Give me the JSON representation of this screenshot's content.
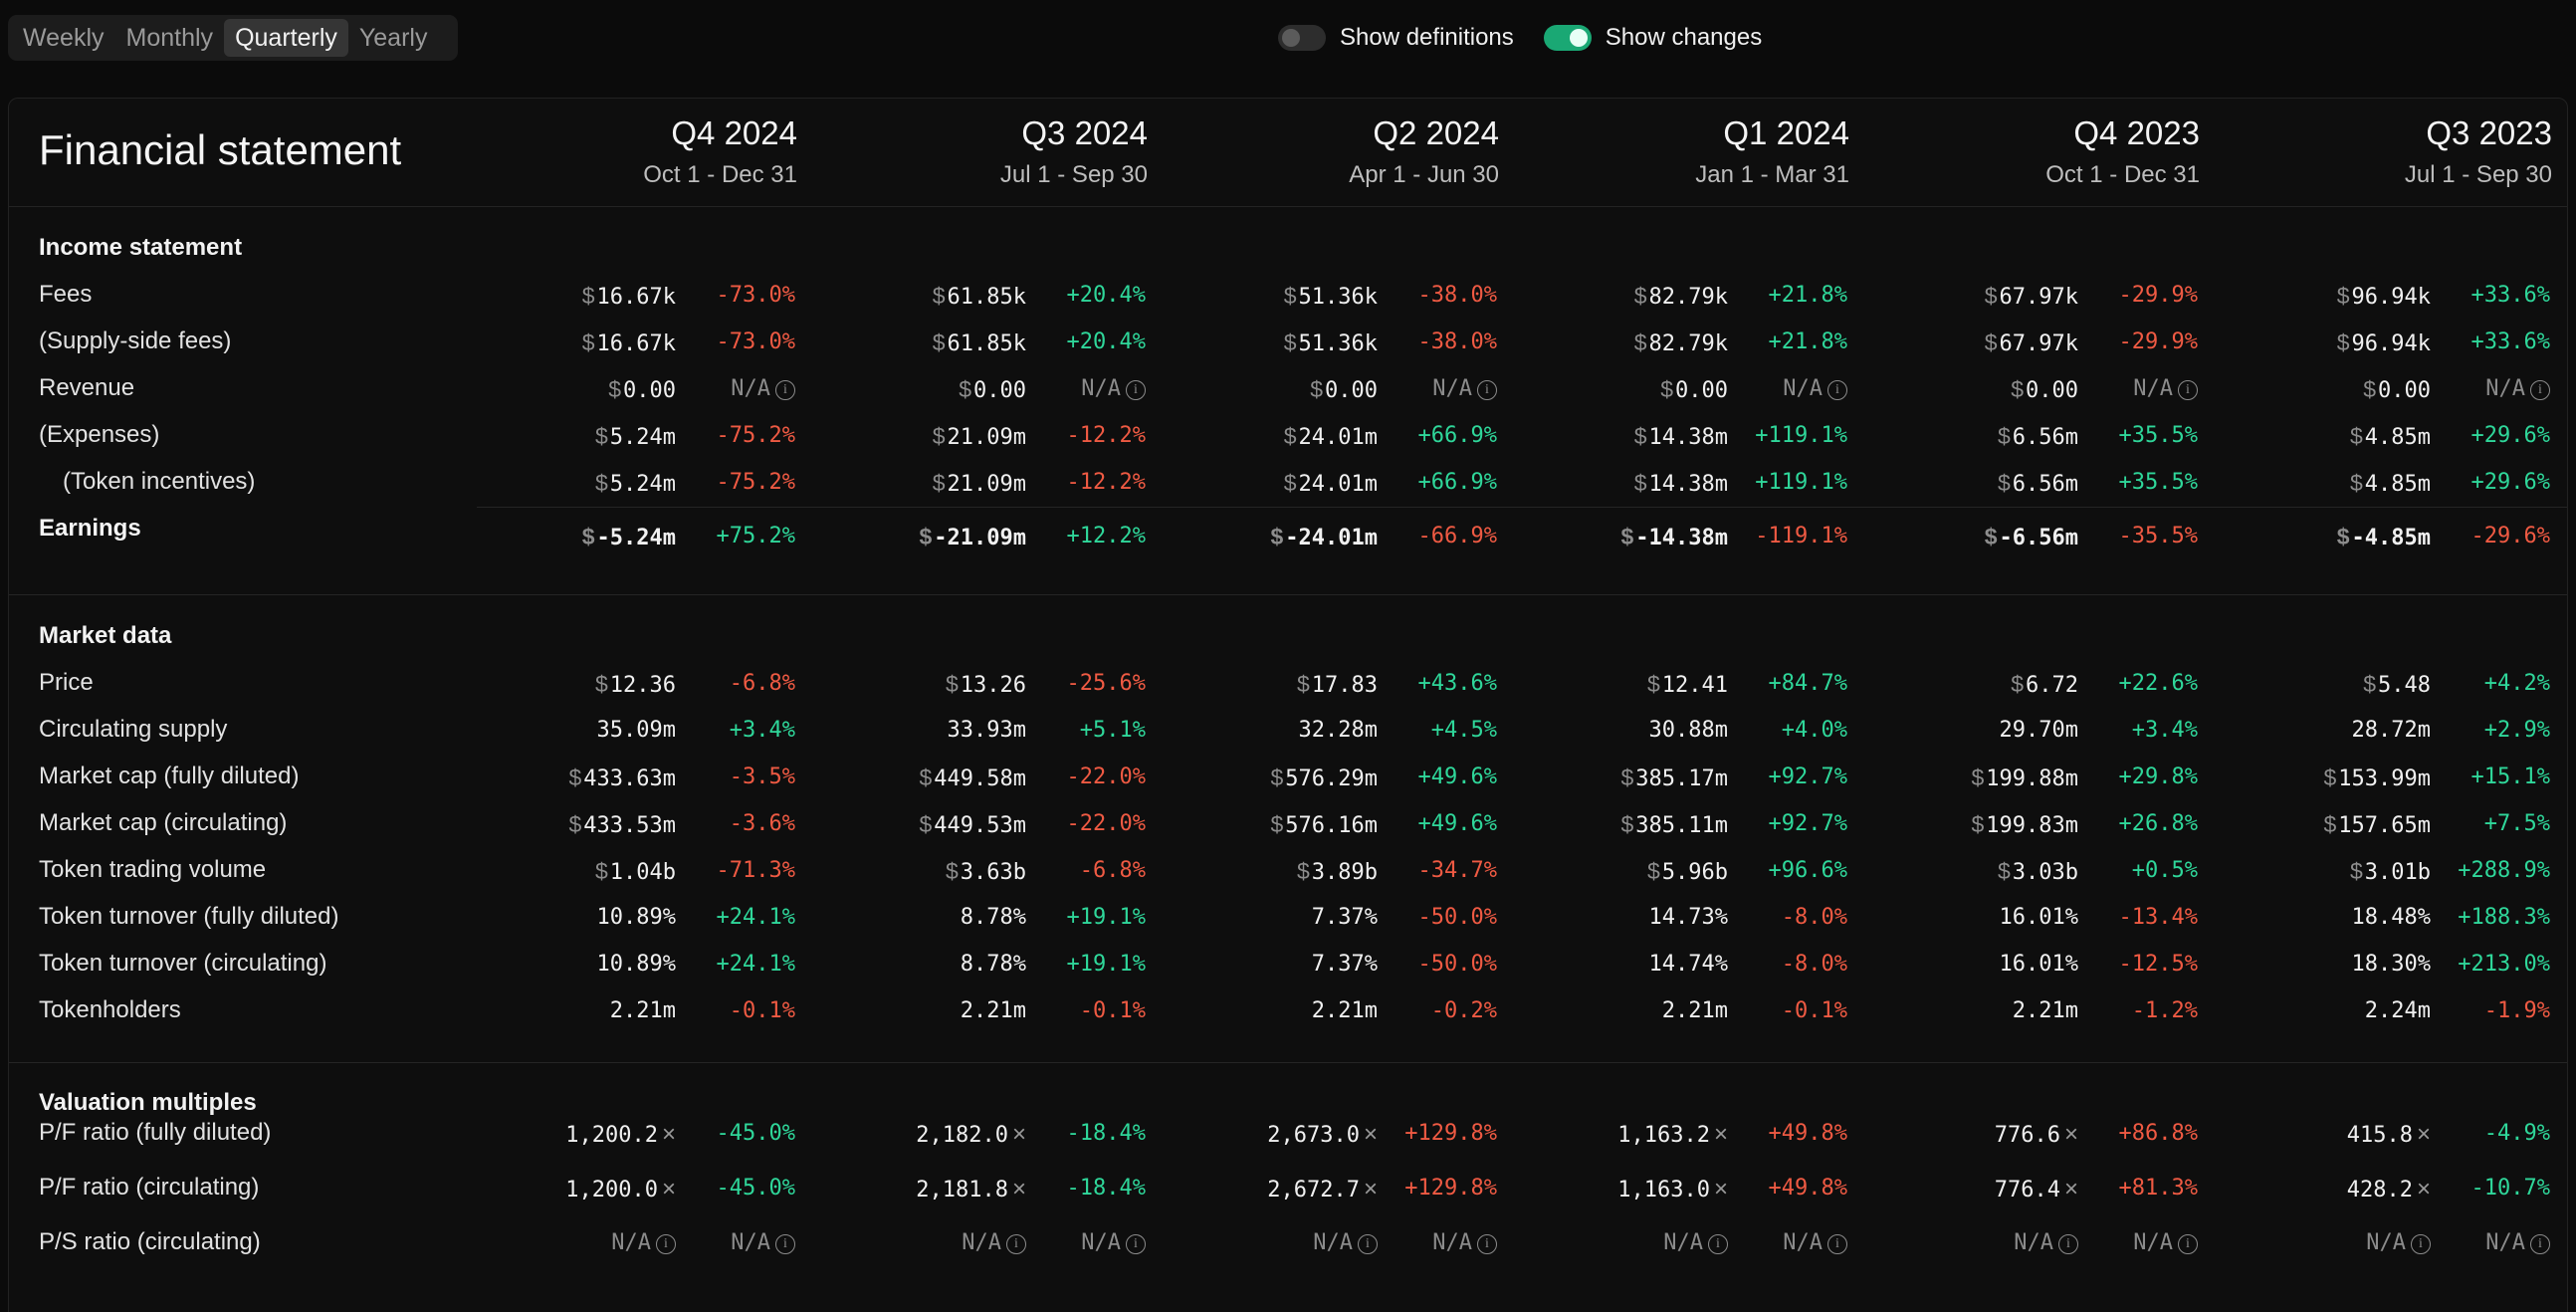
{
  "period_tabs": [
    "Weekly",
    "Monthly",
    "Quarterly",
    "Yearly"
  ],
  "active_tab": "Quarterly",
  "toggles": {
    "definitions": {
      "label": "Show definitions",
      "on": false
    },
    "changes": {
      "label": "Show changes",
      "on": true
    }
  },
  "title": "Financial statement",
  "columns": [
    {
      "period": "Q4 2024",
      "range": "Oct 1 - Dec 31"
    },
    {
      "period": "Q3 2024",
      "range": "Jul 1 - Sep 30"
    },
    {
      "period": "Q2 2024",
      "range": "Apr 1 - Jun 30"
    },
    {
      "period": "Q1 2024",
      "range": "Jan 1 - Mar 31"
    },
    {
      "period": "Q4 2023",
      "range": "Oct 1 - Dec 31"
    },
    {
      "period": "Q3 2023",
      "range": "Jul 1 - Sep 30"
    }
  ],
  "currency_symbol": "$",
  "na_text": "N/A",
  "info_glyph": "i",
  "multiple_symbol": "×",
  "colors": {
    "positive": "#2fd79a",
    "negative": "#ef5a43",
    "accent": "#1aa874"
  },
  "sections": [
    {
      "title": "Income statement",
      "rows": [
        {
          "label": "Fees",
          "currency": true,
          "values": [
            "16.67k",
            "61.85k",
            "51.36k",
            "82.79k",
            "67.97k",
            "96.94k"
          ],
          "changes": [
            "-73.0%",
            "+20.4%",
            "-38.0%",
            "+21.8%",
            "-29.9%",
            "+33.6%"
          ]
        },
        {
          "label": "(Supply-side fees)",
          "currency": true,
          "values": [
            "16.67k",
            "61.85k",
            "51.36k",
            "82.79k",
            "67.97k",
            "96.94k"
          ],
          "changes": [
            "-73.0%",
            "+20.4%",
            "-38.0%",
            "+21.8%",
            "-29.9%",
            "+33.6%"
          ]
        },
        {
          "label": "Revenue",
          "currency": true,
          "values": [
            "0.00",
            "0.00",
            "0.00",
            "0.00",
            "0.00",
            "0.00"
          ],
          "changes": [
            "N/A",
            "N/A",
            "N/A",
            "N/A",
            "N/A",
            "N/A"
          ]
        },
        {
          "label": "(Expenses)",
          "currency": true,
          "values": [
            "5.24m",
            "21.09m",
            "24.01m",
            "14.38m",
            "6.56m",
            "4.85m"
          ],
          "changes": [
            "-75.2%",
            "-12.2%",
            "+66.9%",
            "+119.1%",
            "+35.5%",
            "+29.6%"
          ]
        },
        {
          "label": "(Token incentives)",
          "indent": true,
          "currency": true,
          "values": [
            "5.24m",
            "21.09m",
            "24.01m",
            "14.38m",
            "6.56m",
            "4.85m"
          ],
          "changes": [
            "-75.2%",
            "-12.2%",
            "+66.9%",
            "+119.1%",
            "+35.5%",
            "+29.6%"
          ]
        },
        {
          "label": "Earnings",
          "bold": true,
          "currency": true,
          "values": [
            "-5.24m",
            "-21.09m",
            "-24.01m",
            "-14.38m",
            "-6.56m",
            "-4.85m"
          ],
          "changes": [
            "+75.2%",
            "+12.2%",
            "-66.9%",
            "-119.1%",
            "-35.5%",
            "-29.6%"
          ]
        }
      ]
    },
    {
      "title": "Market data",
      "rows": [
        {
          "label": "Price",
          "currency": true,
          "values": [
            "12.36",
            "13.26",
            "17.83",
            "12.41",
            "6.72",
            "5.48"
          ],
          "changes": [
            "-6.8%",
            "-25.6%",
            "+43.6%",
            "+84.7%",
            "+22.6%",
            "+4.2%"
          ]
        },
        {
          "label": "Circulating supply",
          "values": [
            "35.09m",
            "33.93m",
            "32.28m",
            "30.88m",
            "29.70m",
            "28.72m"
          ],
          "changes": [
            "+3.4%",
            "+5.1%",
            "+4.5%",
            "+4.0%",
            "+3.4%",
            "+2.9%"
          ]
        },
        {
          "label": "Market cap (fully diluted)",
          "currency": true,
          "values": [
            "433.63m",
            "449.58m",
            "576.29m",
            "385.17m",
            "199.88m",
            "153.99m"
          ],
          "changes": [
            "-3.5%",
            "-22.0%",
            "+49.6%",
            "+92.7%",
            "+29.8%",
            "+15.1%"
          ]
        },
        {
          "label": "Market cap (circulating)",
          "currency": true,
          "values": [
            "433.53m",
            "449.53m",
            "576.16m",
            "385.11m",
            "199.83m",
            "157.65m"
          ],
          "changes": [
            "-3.6%",
            "-22.0%",
            "+49.6%",
            "+92.7%",
            "+26.8%",
            "+7.5%"
          ]
        },
        {
          "label": "Token trading volume",
          "currency": true,
          "values": [
            "1.04b",
            "3.63b",
            "3.89b",
            "5.96b",
            "3.03b",
            "3.01b"
          ],
          "changes": [
            "-71.3%",
            "-6.8%",
            "-34.7%",
            "+96.6%",
            "+0.5%",
            "+288.9%"
          ]
        },
        {
          "label": "Token turnover (fully diluted)",
          "values": [
            "10.89%",
            "8.78%",
            "7.37%",
            "14.73%",
            "16.01%",
            "18.48%"
          ],
          "changes": [
            "+24.1%",
            "+19.1%",
            "-50.0%",
            "-8.0%",
            "-13.4%",
            "+188.3%"
          ]
        },
        {
          "label": "Token turnover (circulating)",
          "values": [
            "10.89%",
            "8.78%",
            "7.37%",
            "14.74%",
            "16.01%",
            "18.30%"
          ],
          "changes": [
            "+24.1%",
            "+19.1%",
            "-50.0%",
            "-8.0%",
            "-12.5%",
            "+213.0%"
          ]
        },
        {
          "label": "Tokenholders",
          "values": [
            "2.21m",
            "2.21m",
            "2.21m",
            "2.21m",
            "2.21m",
            "2.24m"
          ],
          "changes": [
            "-0.1%",
            "-0.1%",
            "-0.2%",
            "-0.1%",
            "-1.2%",
            "-1.9%"
          ]
        }
      ]
    },
    {
      "title": "Valuation multiples",
      "rows": [
        {
          "label": "P/F ratio (fully diluted)",
          "multiple": true,
          "values": [
            "1,200.2",
            "2,182.0",
            "2,673.0",
            "1,163.2",
            "776.6",
            "415.8"
          ],
          "changes": [
            "-45.0%",
            "-18.4%",
            "+129.8%",
            "+49.8%",
            "+86.8%",
            "-4.9%"
          ],
          "change_colors": [
            "pos",
            "pos",
            "neg",
            "neg",
            "neg",
            "pos"
          ]
        },
        {
          "label": "P/F ratio (circulating)",
          "multiple": true,
          "values": [
            "1,200.0",
            "2,181.8",
            "2,672.7",
            "1,163.0",
            "776.4",
            "428.2"
          ],
          "changes": [
            "-45.0%",
            "-18.4%",
            "+129.8%",
            "+49.8%",
            "+81.3%",
            "-10.7%"
          ],
          "change_colors": [
            "pos",
            "pos",
            "neg",
            "neg",
            "neg",
            "pos"
          ]
        },
        {
          "label": "P/S ratio (circulating)",
          "multiple": true,
          "values": [
            "N/A",
            "N/A",
            "N/A",
            "N/A",
            "N/A",
            "N/A"
          ],
          "changes": [
            "N/A",
            "N/A",
            "N/A",
            "N/A",
            "N/A",
            "N/A"
          ]
        }
      ]
    }
  ]
}
